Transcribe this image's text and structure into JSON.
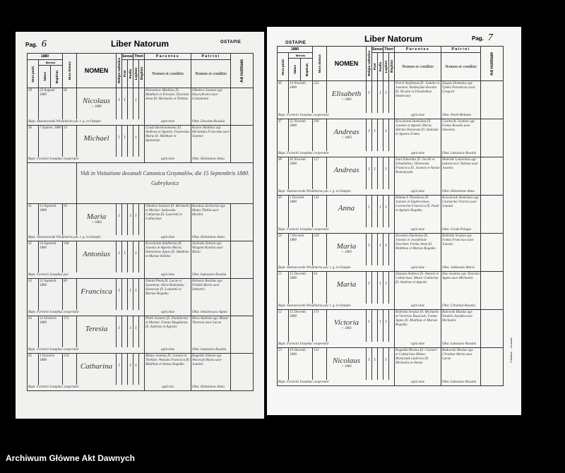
{
  "header_labels": {
    "year": "1880",
    "mensis": "Mensis",
    "nrus_posit": "Nrus posit.",
    "natus": "Natus",
    "baptisat": "Baptisat.",
    "nrus_domus": "Nrus domus",
    "nomen": "NOMEN",
    "religio": "Religio catholica",
    "sexus": "Sexus",
    "puer": "Puer",
    "puella": "Puella",
    "thori": "Thori",
    "legitimi": "Legitimi",
    "illegitimi": "Illegitimi",
    "parentes": "Parentes",
    "patrini": "Patrini",
    "nomen_conditio": "Nomen et conditio",
    "ad_notitiam": "Ad notitiam"
  },
  "left_page": {
    "pag_label": "Pag.",
    "page_number": "6",
    "title": "Liber Natorum",
    "parish": "OSTAPIE",
    "entries": [
      {
        "no": "39",
        "natus": "23 Augusti 1880",
        "bapt": "23",
        "domus": "95",
        "name": "Nicolaus",
        "name_note": "+ 1880",
        "marks": [
          "1",
          "1",
          "",
          "1",
          ""
        ],
        "parentes": "Hobotniaw Matthias fil. Matthaei et Teresiae; Doschan Anna fil. Michaelis et Theklae",
        "patrini": "Ohmitra Joannes agr. Hawrylewicz uxor Constantini",
        "bapt_line": "Bapt. Skomorowski Wlodimirus par. r. g. in Ostapie",
        "conditio": "agricolae",
        "obst": "Obst. Doschan Rosalia"
      },
      {
        "no": "40",
        "natus": "7 Septem. 1880",
        "bapt": "8",
        "domus": "13",
        "name": "Michael",
        "name_note": "",
        "marks": [
          "1",
          "1",
          "",
          "1",
          ""
        ],
        "parentes": "Grudz Bartholomaeus fil. Andreae et Agnetis; Fasiewska Maria fil. Matthaei et Apoloniae",
        "patrini": "Kozior Matthias agr. Michalska Franciska uxor Joannis",
        "bapt_line": "Bapt. Fortecki Josephus cooperator",
        "conditio": "agricolae",
        "obst": "Obst. Hobotniaw Anna"
      },
      {
        "note": "Vidi in Visitatione decanali Canonica Grzymalów, die 15 Septembris 1880. Gabryluvicz"
      },
      {
        "no": "41",
        "natus": "13 Septemb. 1880",
        "bapt": "13",
        "domus": "93",
        "name": "Maria",
        "name_note": "+ 1883",
        "marks": [
          "1",
          "",
          "1",
          "1",
          ""
        ],
        "parentes": "Ohmitra Joannes fil. Michaelis et Mariae; Sadowska Catharina fil. Laurentii et Catharinae",
        "patrini": "Barabas Zacharias agr. Matus Thekla uxor Martini",
        "bapt_line": "Bapt. Skomorowski Wlodimirus par. r. g. in Ostapie",
        "conditio": "agricolae",
        "obst": "Obst. Hobotniaw Anna"
      },
      {
        "no": "42",
        "natus": "24 Septemb. 1880",
        "bapt": "24",
        "domus": "198",
        "name": "Antonius",
        "name_note": "",
        "marks": [
          "1",
          "1",
          "",
          "1",
          ""
        ],
        "parentes": "Kowalczuk Adalbertus fil. Joannis et Agnetis Maria; Hobotniaw Agnes fil. Matthiae et Mariae Klimko",
        "patrini": "Zieliński Simeon agr. Wyzgoła Rosalia uxor Blasii",
        "bapt_line": "Bapt. Fortecki Josephus par.",
        "conditio": "agricolae",
        "obst": "Obst. Łukaszów Rosalia"
      },
      {
        "no": "43",
        "natus": "25 Septemb. 1880",
        "bapt": "25",
        "domus": "89",
        "name": "Francisca",
        "name_note": "",
        "marks": [
          "1",
          "",
          "1",
          "1",
          ""
        ],
        "parentes": "Daniel Petek fil. Lucae et Susannae; Hora Radomska Honorata fil. Laurentii et Mariae Bogatko",
        "patrini": "Hobotaś Basilius agr. Fiedzik Maria uxor Demetrii",
        "bapt_line": "Bapt. Fortecki Josephus cooperator",
        "conditio": "agricolae",
        "obst": "Obst. Smistrowycz Agnes"
      },
      {
        "no": "44",
        "natus": "12 Octobris 1880",
        "bapt": "12",
        "domus": "172",
        "name": "Teresia",
        "name_note": "",
        "marks": [
          "1",
          "",
          "1",
          "1",
          ""
        ],
        "parentes": "Petek Joannes fil. Pantaleonis et Mariae; Fomta Magdalena fil. Andreae et Agnetis",
        "patrini": "Hora Andreas agr. Mazur Theresia uxor Lucae",
        "bapt_line": "Bapt. Fortecki Josephus cooperator",
        "conditio": "agricolae",
        "obst": "Obst. Łukaszów Rosalia"
      },
      {
        "no": "45",
        "natus": "1 Octobris 1880",
        "bapt": "1",
        "domus": "218",
        "name": "Catharina",
        "name_note": "",
        "marks": [
          "1",
          "",
          "1",
          "1",
          ""
        ],
        "parentes": "Matus Joannes fil. Joannis et Theklae; Wasiuta Francisca fil. Matthiae et Annae Bogatko",
        "patrini": "Rogalski Simeon agr. Wawrzyk Maria uxor Joannis",
        "bapt_line": "Bapt. Fortecki Josephus cooperator",
        "conditio": "agricola",
        "obst": "Obst. Hobotniaw Anna"
      }
    ]
  },
  "right_page": {
    "pag_label": "Pag.",
    "page_number": "7",
    "title": "Liber Natorum",
    "parish": "OSTAPIE",
    "side_print": "Z drukarni ... w Lwowie",
    "entries": [
      {
        "no": "46",
        "natus": "14 Novemb. 1880",
        "bapt": "14",
        "domus": "232",
        "name": "Elisabeth",
        "name_note": "+ 1882",
        "marks": [
          "1",
          "",
          "1",
          "1",
          ""
        ],
        "parentes": "Porch Stephanus fil. Joannis et Joannae; Radziejska Rosalia fil. Nicolai et Elisabethae Hodowany",
        "patrini": "Zagata Dometius agr. Tymko Paraskevia uxor Gregorii",
        "bapt_line": "Bapt. Fortecki Josephus cooperator",
        "conditio": "agricolae",
        "obst": "Obst. Petek Melania"
      },
      {
        "no": "47",
        "natus": "22 Novemb. 1880",
        "bapt": "22",
        "domus": "190",
        "name": "Andreas",
        "name_note": "+ 1883",
        "marks": [
          "1",
          "1",
          "",
          "1",
          ""
        ],
        "parentes": "Kowalczuk Stanislaus fil. Joannis et Agnetis Maria; Skirska Honorata fil. Stanislai et Agnetis Fomta",
        "patrini": "Czarnecki Joannes agr. Fomta Rosalia uxor Simeonis",
        "bapt_line": "Bapt. Fortecki Josephus cooperator",
        "conditio": "agricolae",
        "obst": "Obst. Łukaszów Rosalia"
      },
      {
        "no": "48",
        "natus": "30 Novemb. 1880",
        "bapt": "30",
        "domus": "127",
        "name": "Andreas",
        "name_note": "",
        "marks": [
          "1",
          "1",
          "",
          "1",
          ""
        ],
        "parentes": "Saul Eduardus fil. Jacobi et Elisabethae; Olszewska Francisca fil. Joannis et Annae Romanyszko",
        "patrini": "Matelski Laurentius agr. Łukasiewicz Tatiana uxor Joannis",
        "bapt_line": "Bapt. Skomorowski Wlodimirus par. r. g. in Ostapie",
        "conditio": "agricolae",
        "obst": "Obst. Hobotniaw Anna"
      },
      {
        "no": "49",
        "natus": "5 Decemb. 1880",
        "bapt": "6",
        "domus": "134",
        "name": "Anna",
        "name_note": "",
        "marks": [
          "1",
          "",
          "1",
          "1",
          ""
        ],
        "parentes": "Hełmach Theodorus fil. Joannis et Euphrosinae; Czarnecka Francisca fil. Pauli et Agnetis Bogatko",
        "patrini": "Kowalczuk Stanislaus agr. Czarnecka Victoria uxor Joannis",
        "bapt_line": "Bapt. Fortecki Josephus cooperator",
        "conditio": "agricolae",
        "obst": "Obst. Grodz Pelagia"
      },
      {
        "no": "50",
        "natus": "7 Decemb. 1880",
        "bapt": "7",
        "domus": "220",
        "name": "Maria",
        "name_note": "+ 1883",
        "marks": [
          "1",
          "",
          "1",
          "1",
          ""
        ],
        "parentes": "Szwaban Damianus fil. Joannis et Josephinae Doschan; Fomta Anna fil. Matthiae et Mariae Bogatko",
        "patrini": "Bobiński Sergius agr. Fomta Francisca uxor Joannis",
        "bapt_line": "Bapt. Skomorowski Wlodimirus par. r. g. in Ostapie",
        "conditio": "agricolae",
        "obst": "Obst. Jabłonska Maria"
      },
      {
        "no": "51",
        "natus": "15 Decemb. 1880",
        "bapt": "15",
        "domus": "64",
        "name": "Maria",
        "name_note": "",
        "marks": [
          "1",
          "",
          "1",
          "1",
          ""
        ],
        "parentes": "Deputat Andreas fil. Antonii et Catharinae; Mazur Catharina fil. Andreae et Agnetis",
        "patrini": "Hus Joannes agr. Hotocka Agnes uxor Michaelis",
        "bapt_line": "Bapt. Skomorowski Wlodimirus par. r. g. in Ostapie",
        "conditio": "agricolae",
        "obst": "Obst. Chrabust Rosalia"
      },
      {
        "no": "52",
        "natus": "15 Decemb. 1880",
        "bapt": "16",
        "domus": "171",
        "name": "Victoria",
        "name_note": "+ 1882",
        "marks": [
          "1",
          "",
          "1",
          "1",
          ""
        ],
        "parentes": "Bobiński Sergius fil. Michaelis et Victoriae Ruszczak; Fomta Agnes fil. Matthiae et Mariae Bogatko",
        "patrini": "Batowski Blasius agr. Niedzin Josepha uxor Michaelis",
        "bapt_line": "Bapt. Fortecki Josephus cooperator",
        "conditio": "agricolae",
        "obst": "Obst. Łukaszów Rosalia"
      },
      {
        "no": "53",
        "natus": "19 Decemb. 1880",
        "bapt": "19",
        "domus": "132",
        "name": "Nicolaus",
        "name_note": "+ 1882",
        "marks": [
          "1",
          "1",
          "",
          "1",
          ""
        ],
        "parentes": "Rogalski Blasius fil. Casimiri et Catharinae Matus; Martyniuk Ludovica fil. Michaelis et Annae",
        "patrini": "Budowski Blasius agr. Chrabust Maria uxor Lucae",
        "bapt_line": "Bapt. Fortecki Josephus cooperator",
        "conditio": "agricolae",
        "obst": "Obst. Łukaszów Rosalia"
      }
    ]
  },
  "footer": {
    "text": "Archiwum Główne Akt Dawnych"
  }
}
